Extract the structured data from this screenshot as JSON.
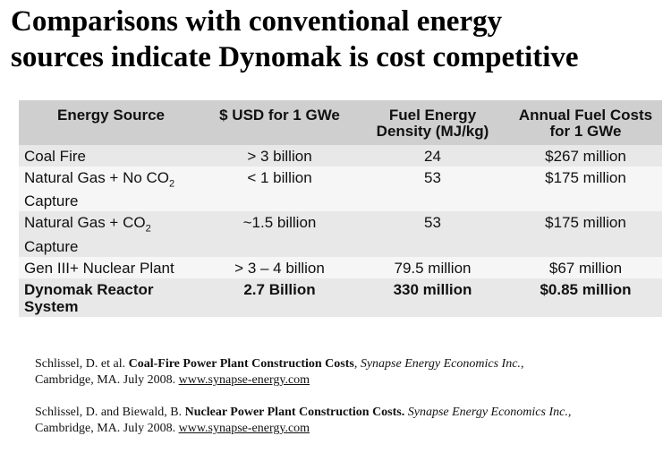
{
  "title": {
    "line1": "Comparisons with conventional energy",
    "line2": "sources indicate Dynomak is cost competitive"
  },
  "table": {
    "headers": {
      "source": "Energy Source",
      "usd": "$ USD for 1 GWe",
      "density_line1": "Fuel Energy",
      "density_line2": "Density (MJ/kg)",
      "annual_line1": "Annual Fuel Costs",
      "annual_line2": "for 1 GWe"
    },
    "rows": [
      {
        "source": "Coal Fire",
        "usd": "> 3 billion",
        "density": "24",
        "annual": "$267 million"
      },
      {
        "source_pre": "Natural Gas + No CO",
        "source_sub": "2",
        "source_post": "Capture",
        "usd": "< 1 billion",
        "density": "53",
        "annual": "$175 million"
      },
      {
        "source_pre": "Natural Gas + CO",
        "source_sub": "2",
        "source_post": "Capture",
        "usd": "~1.5 billion",
        "density": "53",
        "annual": "$175 million"
      },
      {
        "source": "Gen III+ Nuclear Plant",
        "usd": "> 3 – 4 billion",
        "density": "79.5 million",
        "annual": "$67 million"
      },
      {
        "source_line1": "Dynomak Reactor",
        "source_line2": "System",
        "usd": "2.7 Billion",
        "density": "330 million",
        "annual": "$0.85 million"
      }
    ]
  },
  "references": [
    {
      "authors": "Schlissel, D. et al.",
      "title": "Coal-Fire Power Plant Construction Costs",
      "publisher": "Synapse Energy Economics Inc.",
      "place": "Cambridge, MA. July 2008.",
      "url": "www.synapse-energy.com"
    },
    {
      "authors": "Schlissel, D. and Biewald, B.",
      "title": "Nuclear Power Plant Construction Costs.",
      "publisher": "Synapse Energy Economics Inc.,",
      "place": "Cambridge, MA. July 2008.",
      "url": "www.synapse-energy.com"
    }
  ]
}
